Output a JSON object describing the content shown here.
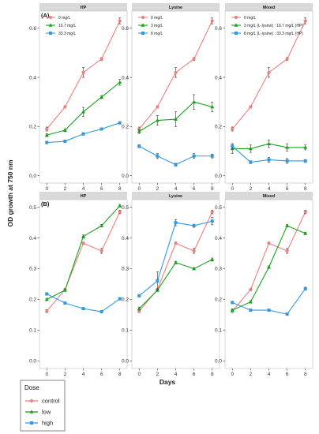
{
  "figure": {
    "y_axis_title": "OD growth at 750 nm",
    "x_axis_title": "Days",
    "dose_legend": {
      "title": "Dose",
      "entries": [
        {
          "label": "control",
          "color": "#f08080",
          "marker": "circle"
        },
        {
          "label": "low",
          "color": "#1aa31a",
          "marker": "triangle"
        },
        {
          "label": "high",
          "color": "#3399dd",
          "marker": "square"
        }
      ]
    }
  },
  "chart_data": [
    {
      "type": "line",
      "row_tag": "(A)",
      "title": "HP",
      "x": [
        0,
        2,
        4,
        6,
        8
      ],
      "ylim": [
        -0.03,
        0.67
      ],
      "yticks": [
        0.0,
        0.2,
        0.4,
        0.6
      ],
      "ytick_labels": [
        "0.0",
        "0.2",
        "0.4",
        "0.6"
      ],
      "series": [
        {
          "name": "0 mg/L",
          "dose": "control",
          "values": [
            0.19,
            0.28,
            0.42,
            0.475,
            0.63
          ],
          "errors": [
            0.008,
            0.005,
            0.02,
            0.006,
            0.012
          ]
        },
        {
          "name": "16.7 mg/L",
          "dose": "low",
          "values": [
            0.165,
            0.185,
            0.26,
            0.32,
            0.38
          ],
          "errors": [
            0.006,
            0.006,
            0.018,
            0.006,
            0.012
          ]
        },
        {
          "name": "33.3 mg/L",
          "dose": "high",
          "values": [
            0.135,
            0.14,
            0.17,
            0.19,
            0.215
          ],
          "errors": [
            0.005,
            0.005,
            0.005,
            0.004,
            0.004
          ]
        }
      ]
    },
    {
      "type": "line",
      "title": "Lysine",
      "x": [
        0,
        2,
        4,
        6,
        8
      ],
      "ylim": [
        -0.03,
        0.67
      ],
      "yticks": [
        0.0,
        0.2,
        0.4,
        0.6
      ],
      "ytick_labels": [
        "0.0",
        "0.2",
        "0.4",
        "0.6"
      ],
      "series": [
        {
          "name": "0 mg/L",
          "dose": "control",
          "values": [
            0.19,
            0.28,
            0.42,
            0.475,
            0.63
          ],
          "errors": [
            0.008,
            0.005,
            0.02,
            0.006,
            0.012
          ]
        },
        {
          "name": "3 mg/L",
          "dose": "low",
          "values": [
            0.18,
            0.225,
            0.23,
            0.3,
            0.28
          ],
          "errors": [
            0.008,
            0.02,
            0.03,
            0.03,
            0.02
          ]
        },
        {
          "name": "8 mg/L",
          "dose": "high",
          "values": [
            0.12,
            0.08,
            0.045,
            0.08,
            0.08
          ],
          "errors": [
            0.006,
            0.01,
            0.006,
            0.01,
            0.008
          ]
        }
      ]
    },
    {
      "type": "line",
      "title": "Mixed",
      "x": [
        0,
        2,
        4,
        6,
        8
      ],
      "ylim": [
        -0.03,
        0.67
      ],
      "yticks": [
        0.0,
        0.2,
        0.4,
        0.6
      ],
      "ytick_labels": [
        "0.0",
        "0.2",
        "0.4",
        "0.6"
      ],
      "series": [
        {
          "name": "0 mg/L",
          "dose": "control",
          "values": [
            0.19,
            0.28,
            0.42,
            0.475,
            0.63
          ],
          "errors": [
            0.008,
            0.005,
            0.02,
            0.006,
            0.012
          ]
        },
        {
          "name": "3 mg/L (L-lysine) : 16.7 mg/L (HP)",
          "dose": "low",
          "values": [
            0.11,
            0.11,
            0.13,
            0.115,
            0.115
          ],
          "errors": [
            0.02,
            0.015,
            0.015,
            0.015,
            0.01
          ]
        },
        {
          "name": "8 mg/L (L-lysine) : 33.3 mg/L (HP)",
          "dose": "high",
          "values": [
            0.12,
            0.055,
            0.065,
            0.06,
            0.06
          ],
          "errors": [
            0.01,
            0.006,
            0.01,
            0.01,
            0.006
          ]
        }
      ]
    },
    {
      "type": "line",
      "row_tag": "(B)",
      "title": "HP",
      "x": [
        0,
        2,
        4,
        6,
        8
      ],
      "ylim": [
        -0.025,
        0.525
      ],
      "yticks": [
        0.0,
        0.1,
        0.2,
        0.3,
        0.4,
        0.5
      ],
      "ytick_labels": [
        "0.0",
        "0.1",
        "0.2",
        "0.3",
        "0.4",
        "0.5"
      ],
      "series": [
        {
          "dose": "control",
          "values": [
            0.162,
            0.232,
            0.383,
            0.358,
            0.485
          ],
          "errors": [
            0.005,
            0.004,
            0.004,
            0.008,
            0.006
          ]
        },
        {
          "dose": "low",
          "values": [
            0.2,
            0.23,
            0.405,
            0.44,
            0.505
          ],
          "errors": [
            0.004,
            0.004,
            0.005,
            0.004,
            0.004
          ]
        },
        {
          "dose": "high",
          "values": [
            0.218,
            0.188,
            0.17,
            0.16,
            0.202
          ],
          "errors": [
            0.004,
            0.004,
            0.003,
            0.003,
            0.004
          ]
        }
      ]
    },
    {
      "type": "line",
      "title": "Lysine",
      "x": [
        0,
        2,
        4,
        6,
        8
      ],
      "ylim": [
        -0.025,
        0.525
      ],
      "yticks": [
        0.0,
        0.1,
        0.2,
        0.3,
        0.4,
        0.5
      ],
      "ytick_labels": [
        "0.0",
        "0.1",
        "0.2",
        "0.3",
        "0.4",
        "0.5"
      ],
      "series": [
        {
          "dose": "control",
          "values": [
            0.162,
            0.232,
            0.383,
            0.358,
            0.485
          ],
          "errors": [
            0.005,
            0.004,
            0.004,
            0.008,
            0.006
          ]
        },
        {
          "dose": "low",
          "values": [
            0.17,
            0.23,
            0.32,
            0.3,
            0.33
          ],
          "errors": [
            0.005,
            0.004,
            0.004,
            0.003,
            0.005
          ]
        },
        {
          "dose": "high",
          "values": [
            0.212,
            0.26,
            0.45,
            0.44,
            0.455
          ],
          "errors": [
            0.004,
            0.03,
            0.01,
            0.005,
            0.012
          ]
        }
      ]
    },
    {
      "type": "line",
      "title": "Mixed",
      "x": [
        0,
        2,
        4,
        6,
        8
      ],
      "ylim": [
        -0.025,
        0.525
      ],
      "yticks": [
        0.0,
        0.1,
        0.2,
        0.3,
        0.4,
        0.5
      ],
      "ytick_labels": [
        "0.0",
        "0.1",
        "0.2",
        "0.3",
        "0.4",
        "0.5"
      ],
      "series": [
        {
          "dose": "control",
          "values": [
            0.162,
            0.232,
            0.383,
            0.358,
            0.485
          ],
          "errors": [
            0.005,
            0.004,
            0.004,
            0.008,
            0.006
          ]
        },
        {
          "dose": "low",
          "values": [
            0.165,
            0.192,
            0.305,
            0.44,
            0.415
          ],
          "errors": [
            0.004,
            0.004,
            0.004,
            0.004,
            0.004
          ]
        },
        {
          "dose": "high",
          "values": [
            0.19,
            0.165,
            0.165,
            0.152,
            0.235
          ],
          "errors": [
            0.004,
            0.004,
            0.003,
            0.003,
            0.005
          ]
        }
      ]
    }
  ]
}
